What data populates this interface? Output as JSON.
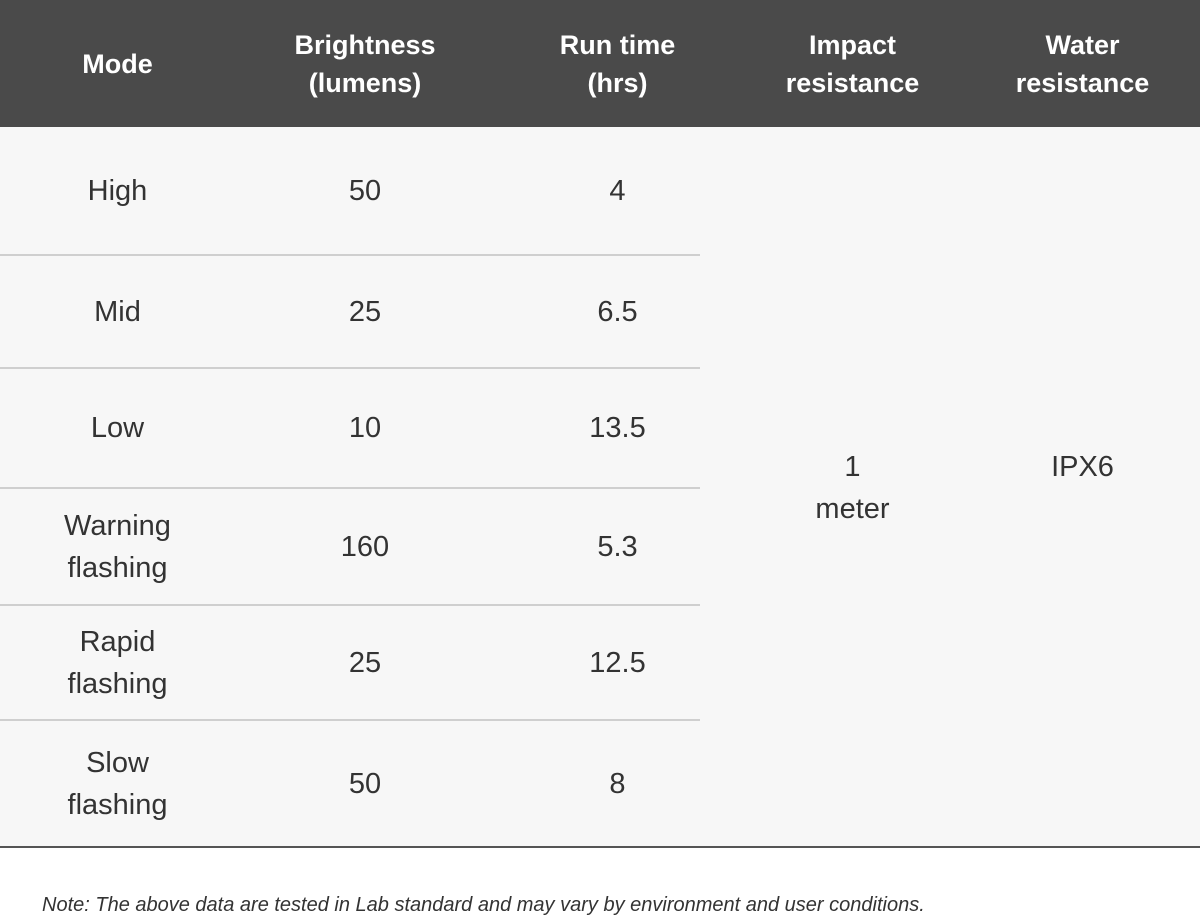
{
  "table": {
    "header": [
      "Mode",
      "Brightness\n(lumens)",
      "Run time\n(hrs)",
      "Impact\nresistance",
      "Water\nresistance"
    ],
    "rows": [
      [
        "High",
        50,
        4
      ],
      [
        "Mid",
        25,
        6.5
      ],
      [
        "Low",
        10,
        13.5
      ],
      [
        "Warning\nflashing",
        160,
        5.3
      ],
      [
        "Rapid\nflashing",
        25,
        12.5
      ],
      [
        "Slow\nflashing",
        50,
        8
      ]
    ],
    "impact_resistance": "1\nmeter",
    "water_resistance": "IPX6"
  },
  "note": "Note: The above data are tested in Lab standard and may vary by environment and user conditions."
}
